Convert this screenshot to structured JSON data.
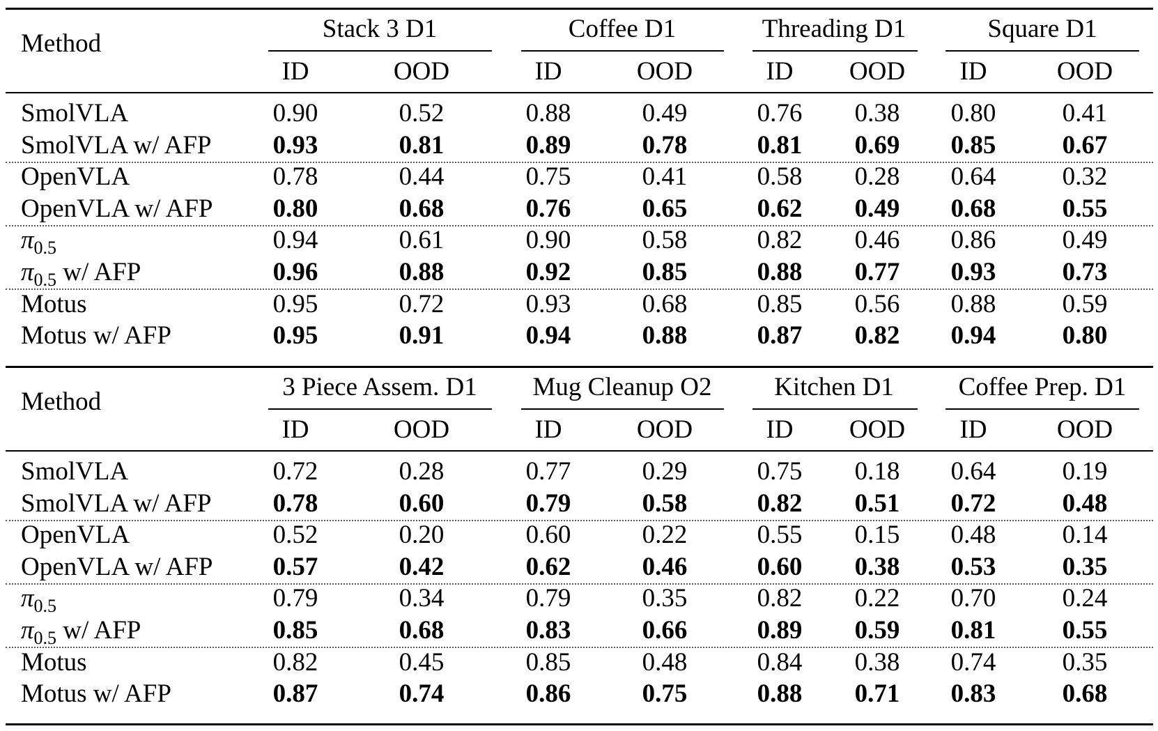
{
  "method_header": "Method",
  "id_label": "ID",
  "ood_label": "OOD",
  "blocks": [
    {
      "tasks": [
        "Stack 3 D1",
        "Coffee D1",
        "Threading D1",
        "Square D1"
      ],
      "rows": [
        {
          "method": "SmolVLA",
          "values": [
            "0.90",
            "0.52",
            "0.88",
            "0.49",
            "0.76",
            "0.38",
            "0.80",
            "0.41"
          ],
          "bold": false
        },
        {
          "method": "SmolVLA w/ AFP",
          "values": [
            "0.93",
            "0.81",
            "0.89",
            "0.78",
            "0.81",
            "0.69",
            "0.85",
            "0.67"
          ],
          "bold": true
        },
        {
          "method": "OpenVLA",
          "values": [
            "0.78",
            "0.44",
            "0.75",
            "0.41",
            "0.58",
            "0.28",
            "0.64",
            "0.32"
          ],
          "bold": false
        },
        {
          "method": "OpenVLA w/ AFP",
          "values": [
            "0.80",
            "0.68",
            "0.76",
            "0.65",
            "0.62",
            "0.49",
            "0.68",
            "0.55"
          ],
          "bold": true
        },
        {
          "method": "π0.5",
          "pi": true,
          "values": [
            "0.94",
            "0.61",
            "0.90",
            "0.58",
            "0.82",
            "0.46",
            "0.86",
            "0.49"
          ],
          "bold": false
        },
        {
          "method": "π0.5 w/ AFP",
          "pi": true,
          "values": [
            "0.96",
            "0.88",
            "0.92",
            "0.85",
            "0.88",
            "0.77",
            "0.93",
            "0.73"
          ],
          "bold": true
        },
        {
          "method": "Motus",
          "values": [
            "0.95",
            "0.72",
            "0.93",
            "0.68",
            "0.85",
            "0.56",
            "0.88",
            "0.59"
          ],
          "bold": false
        },
        {
          "method": "Motus w/ AFP",
          "values": [
            "0.95",
            "0.91",
            "0.94",
            "0.88",
            "0.87",
            "0.82",
            "0.94",
            "0.80"
          ],
          "bold": true
        }
      ]
    },
    {
      "tasks": [
        "3 Piece Assem. D1",
        "Mug Cleanup O2",
        "Kitchen D1",
        "Coffee Prep. D1"
      ],
      "rows": [
        {
          "method": "SmolVLA",
          "values": [
            "0.72",
            "0.28",
            "0.77",
            "0.29",
            "0.75",
            "0.18",
            "0.64",
            "0.19"
          ],
          "bold": false
        },
        {
          "method": "SmolVLA w/ AFP",
          "values": [
            "0.78",
            "0.60",
            "0.79",
            "0.58",
            "0.82",
            "0.51",
            "0.72",
            "0.48"
          ],
          "bold": true
        },
        {
          "method": "OpenVLA",
          "values": [
            "0.52",
            "0.20",
            "0.60",
            "0.22",
            "0.55",
            "0.15",
            "0.48",
            "0.14"
          ],
          "bold": false
        },
        {
          "method": "OpenVLA w/ AFP",
          "values": [
            "0.57",
            "0.42",
            "0.62",
            "0.46",
            "0.60",
            "0.38",
            "0.53",
            "0.35"
          ],
          "bold": true
        },
        {
          "method": "π0.5",
          "pi": true,
          "values": [
            "0.79",
            "0.34",
            "0.79",
            "0.35",
            "0.82",
            "0.22",
            "0.70",
            "0.24"
          ],
          "bold": false
        },
        {
          "method": "π0.5 w/ AFP",
          "pi": true,
          "values": [
            "0.85",
            "0.68",
            "0.83",
            "0.66",
            "0.89",
            "0.59",
            "0.81",
            "0.55"
          ],
          "bold": true
        },
        {
          "method": "Motus",
          "values": [
            "0.82",
            "0.45",
            "0.85",
            "0.48",
            "0.84",
            "0.38",
            "0.74",
            "0.35"
          ],
          "bold": false
        },
        {
          "method": "Motus w/ AFP",
          "values": [
            "0.87",
            "0.74",
            "0.86",
            "0.75",
            "0.88",
            "0.71",
            "0.83",
            "0.68"
          ],
          "bold": true
        }
      ]
    }
  ]
}
